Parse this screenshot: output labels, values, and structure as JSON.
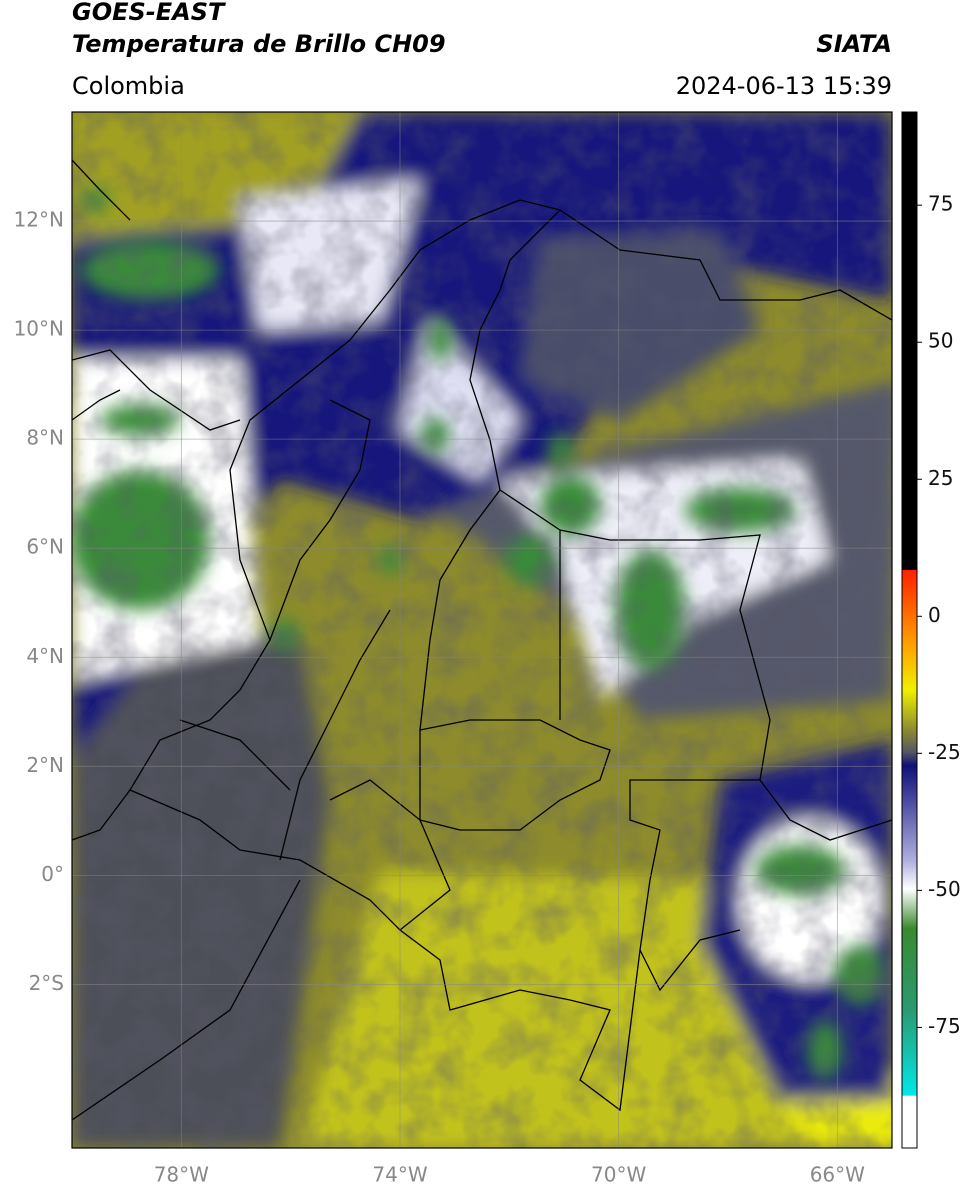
{
  "header": {
    "satellite": "GOES-EAST",
    "product": "Temperatura de Brillo CH09",
    "agency": "SIATA",
    "region": "Colombia",
    "datetime": "2024-06-13 15:39"
  },
  "map": {
    "lonlim": [
      -80,
      -65
    ],
    "latlim": [
      -5,
      14
    ],
    "lon_ticks": [
      {
        "value": -78,
        "label": "78°W"
      },
      {
        "value": -74,
        "label": "74°W"
      },
      {
        "value": -70,
        "label": "70°W"
      },
      {
        "value": -66,
        "label": "66°W"
      }
    ],
    "lat_ticks": [
      {
        "value": 12,
        "label": "12°N"
      },
      {
        "value": 10,
        "label": "10°N"
      },
      {
        "value": 8,
        "label": "8°N"
      },
      {
        "value": 6,
        "label": "6°N"
      },
      {
        "value": 4,
        "label": "4°N"
      },
      {
        "value": 2,
        "label": "2°N"
      },
      {
        "value": 0,
        "label": "0°"
      },
      {
        "value": -2,
        "label": "2°S"
      }
    ],
    "grid": true
  },
  "colorbar": {
    "lim": [
      -97,
      92
    ],
    "ticks": [
      75,
      50,
      25,
      0,
      -25,
      -50,
      -75
    ]
  }
}
